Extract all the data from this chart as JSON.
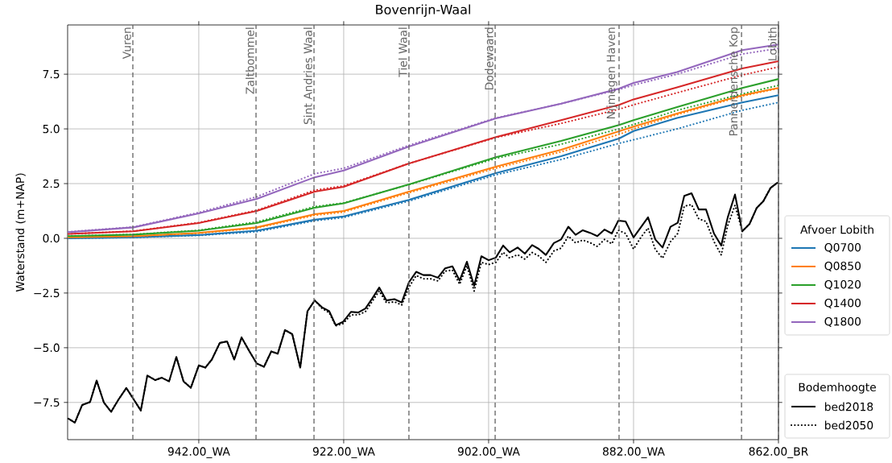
{
  "chart_data": {
    "type": "line",
    "title": "Bovenrijn-Waal",
    "ylabel": "Waterstand (m+NAP)",
    "legend_title": [
      "Afvoer Lobith",
      "Bodemhoogte"
    ],
    "x": [
      960.0,
      951,
      942,
      934,
      926,
      922,
      913,
      901,
      892,
      884,
      882,
      876,
      867,
      862
    ],
    "xlim": [
      960.1,
      862
    ],
    "xticks": [
      {
        "value": 942,
        "label": "942.00_WA"
      },
      {
        "value": 922,
        "label": "922.00_WA"
      },
      {
        "value": 902,
        "label": "902.00_WA"
      },
      {
        "value": 882,
        "label": "882.00_WA"
      },
      {
        "value": 862,
        "label": "862.00_BR"
      }
    ],
    "ylim": [
      -9.2,
      9.75
    ],
    "yticks": [
      {
        "value": -7.5,
        "label": "−7.5"
      },
      {
        "value": -5,
        "label": "−5.0"
      },
      {
        "value": -2.5,
        "label": "−2.5"
      },
      {
        "value": 0,
        "label": "0.0"
      },
      {
        "value": 2.5,
        "label": "2.5"
      },
      {
        "value": 5,
        "label": "5.0"
      },
      {
        "value": 7.5,
        "label": "7.5"
      }
    ],
    "grid": true,
    "legend": "right",
    "ref_lines": [
      {
        "axis": "x",
        "value": 951.1,
        "label": "Vuren",
        "color": "#666666",
        "line_style": "dashed"
      },
      {
        "axis": "x",
        "value": 934.1,
        "label": "Zaltbommel",
        "color": "#666666",
        "line_style": "dashed"
      },
      {
        "axis": "x",
        "value": 926.1,
        "label": "Sint Andries Waal",
        "color": "#666666",
        "line_style": "dashed"
      },
      {
        "axis": "x",
        "value": 913.0,
        "label": "Tiel Waal",
        "color": "#666666",
        "line_style": "dashed"
      },
      {
        "axis": "x",
        "value": 901.1,
        "label": "Dodewaard",
        "color": "#666666",
        "line_style": "dashed"
      },
      {
        "axis": "x",
        "value": 884.0,
        "label": "Nijmegen Haven",
        "color": "#666666",
        "line_style": "dashed"
      },
      {
        "axis": "x",
        "value": 867.1,
        "label": "Pannerdensche Kop",
        "color": "#666666",
        "line_style": "dashed"
      },
      {
        "axis": "x",
        "value": 862.0,
        "label": "Lobith",
        "color": "#666666",
        "line_style": "dashed"
      }
    ],
    "series": [
      {
        "name": "Q0700",
        "color": "#1f77b4",
        "line_style": "solid",
        "values": [
          0.0,
          0.05,
          0.15,
          0.35,
          0.85,
          1.0,
          1.76,
          2.98,
          3.75,
          4.56,
          4.9,
          5.5,
          6.21,
          6.54
        ]
      },
      {
        "color": "#1f77b4",
        "line_style": "dotted",
        "values": [
          0.0,
          0.04,
          0.13,
          0.3,
          0.8,
          0.95,
          1.7,
          2.9,
          3.6,
          4.34,
          4.5,
          5.0,
          5.85,
          6.21
        ]
      },
      {
        "name": "Q0850",
        "color": "#ff7f0e",
        "line_style": "solid",
        "values": [
          0.05,
          0.1,
          0.25,
          0.5,
          1.1,
          1.25,
          2.13,
          3.27,
          4.05,
          4.89,
          5.1,
          5.7,
          6.54,
          6.87
        ]
      },
      {
        "color": "#ff7f0e",
        "line_style": "dotted",
        "values": [
          0.05,
          0.09,
          0.23,
          0.47,
          1.05,
          1.2,
          2.08,
          3.2,
          3.95,
          4.75,
          5.0,
          5.65,
          6.5,
          6.85
        ]
      },
      {
        "name": "Q1020",
        "color": "#2ca02c",
        "line_style": "solid",
        "values": [
          0.1,
          0.17,
          0.35,
          0.7,
          1.4,
          1.6,
          2.46,
          3.71,
          4.45,
          5.18,
          5.4,
          6.0,
          6.87,
          7.28
        ]
      },
      {
        "color": "#2ca02c",
        "line_style": "dotted",
        "values": [
          0.1,
          0.18,
          0.37,
          0.75,
          1.45,
          1.62,
          2.45,
          3.65,
          4.3,
          5.0,
          5.2,
          5.85,
          6.6,
          6.99
        ]
      },
      {
        "name": "Q1400",
        "color": "#d62728",
        "line_style": "solid",
        "values": [
          0.2,
          0.32,
          0.7,
          1.25,
          2.13,
          2.35,
          3.42,
          4.63,
          5.4,
          6.1,
          6.35,
          6.9,
          7.76,
          8.09
        ]
      },
      {
        "color": "#d62728",
        "line_style": "dotted",
        "values": [
          0.2,
          0.33,
          0.72,
          1.28,
          2.2,
          2.4,
          3.42,
          4.6,
          5.25,
          5.9,
          6.1,
          6.65,
          7.46,
          7.83
        ]
      },
      {
        "name": "Q1800",
        "color": "#9467bd",
        "line_style": "solid",
        "values": [
          0.28,
          0.5,
          1.14,
          1.8,
          2.79,
          3.1,
          4.19,
          5.48,
          6.15,
          6.84,
          7.1,
          7.6,
          8.6,
          8.86
        ]
      },
      {
        "color": "#9467bd",
        "line_style": "dotted",
        "values": [
          0.3,
          0.52,
          1.18,
          1.9,
          2.95,
          3.2,
          4.25,
          5.5,
          6.15,
          6.8,
          7.0,
          7.5,
          8.42,
          8.68
        ]
      },
      {
        "name": "bed2018",
        "color": "#000000",
        "line_style": "solid",
        "x": [
          960.0,
          959.1,
          958.1,
          957.0,
          956.1,
          955.1,
          954.1,
          953.1,
          952.0,
          951.0,
          950.0,
          949.1,
          948.0,
          947.1,
          946.1,
          945.1,
          944.1,
          943.1,
          942.0,
          941.1,
          940.2,
          939.1,
          938.1,
          937.1,
          936.1,
          935.0,
          934.0,
          933.0,
          932.0,
          931.1,
          930.1,
          929.1,
          928.0,
          927.0,
          926.0,
          925.0,
          924.0,
          923.1,
          922.1,
          921.0,
          920.0,
          919.0,
          918.0,
          917.1,
          916.1,
          915.0,
          914.0,
          913.0,
          912.0,
          911.0,
          910.0,
          909.0,
          908.0,
          907.0,
          906.0,
          905.0,
          904.0,
          903.0,
          902.0,
          901.0,
          900.0,
          899.1,
          898.0,
          897.0,
          896.0,
          895.1,
          894.1,
          893.0,
          892.0,
          891.0,
          890.0,
          889.0,
          888.0,
          887.0,
          886.0,
          885.0,
          884.1,
          883.1,
          882.0,
          881.0,
          880.0,
          879.0,
          878.0,
          876.9,
          875.9,
          875.0,
          874.0,
          873.0,
          872.0,
          870.9,
          869.9,
          869.0,
          868.0,
          867.0,
          866.0,
          865.0,
          864.1,
          863.1,
          862.1
        ],
        "values": [
          -8.24,
          -8.42,
          -7.62,
          -7.48,
          -6.5,
          -7.5,
          -7.93,
          -7.38,
          -6.84,
          -7.35,
          -7.87,
          -6.27,
          -6.48,
          -6.37,
          -6.54,
          -5.42,
          -6.54,
          -6.83,
          -5.81,
          -5.91,
          -5.54,
          -4.78,
          -4.71,
          -5.54,
          -4.53,
          -5.17,
          -5.72,
          -5.87,
          -5.17,
          -5.27,
          -4.19,
          -4.38,
          -5.91,
          -3.33,
          -2.84,
          -3.15,
          -3.33,
          -3.97,
          -3.82,
          -3.36,
          -3.39,
          -3.21,
          -2.72,
          -2.25,
          -2.84,
          -2.78,
          -2.93,
          -2.01,
          -1.53,
          -1.68,
          -1.68,
          -1.8,
          -1.37,
          -1.28,
          -1.93,
          -1.07,
          -2.17,
          -0.82,
          -1.0,
          -0.88,
          -0.33,
          -0.64,
          -0.42,
          -0.7,
          -0.31,
          -0.48,
          -0.76,
          -0.22,
          -0.05,
          0.53,
          0.16,
          0.37,
          0.25,
          0.1,
          0.4,
          0.22,
          0.81,
          0.77,
          0.04,
          0.5,
          0.96,
          -0.05,
          -0.42,
          0.53,
          0.71,
          1.94,
          2.06,
          1.32,
          1.32,
          0.22,
          -0.33,
          0.96,
          2.0,
          0.32,
          0.65,
          1.39,
          1.69,
          2.3,
          2.55
        ]
      },
      {
        "name": "bed2050",
        "color": "#000000",
        "line_style": "dotted",
        "x": [
          960.0,
          959.1,
          958.1,
          957.0,
          956.1,
          955.1,
          954.1,
          953.1,
          952.0,
          951.0,
          950.0,
          949.1,
          948.0,
          947.1,
          946.1,
          945.1,
          944.1,
          943.1,
          942.0,
          941.1,
          940.2,
          939.1,
          938.1,
          937.1,
          936.1,
          935.0,
          934.0,
          933.0,
          932.0,
          931.1,
          930.1,
          929.1,
          928.0,
          927.0,
          926.0,
          925.0,
          924.0,
          923.1,
          922.1,
          921.0,
          920.0,
          919.0,
          918.0,
          917.1,
          916.1,
          915.0,
          914.0,
          913.0,
          912.0,
          911.0,
          910.0,
          909.0,
          908.0,
          907.0,
          906.0,
          905.0,
          904.0,
          903.0,
          902.0,
          901.0,
          900.0,
          899.1,
          898.0,
          897.0,
          896.0,
          895.1,
          894.1,
          893.0,
          892.0,
          891.0,
          890.0,
          889.0,
          888.0,
          887.0,
          886.0,
          885.0,
          884.1,
          883.1,
          882.0,
          881.0,
          880.0,
          879.0,
          878.0,
          876.9,
          875.9,
          875.0,
          874.0,
          873.0,
          872.0,
          870.9,
          869.9,
          869.0,
          868.0,
          867.0,
          866.0,
          865.0,
          864.1,
          863.1,
          862.1
        ],
        "values": [
          -8.24,
          -8.42,
          -7.62,
          -7.48,
          -6.5,
          -7.5,
          -7.93,
          -7.38,
          -6.84,
          -7.35,
          -7.87,
          -6.27,
          -6.48,
          -6.37,
          -6.54,
          -5.42,
          -6.54,
          -6.83,
          -5.81,
          -5.91,
          -5.54,
          -4.78,
          -4.71,
          -5.54,
          -4.53,
          -5.17,
          -5.72,
          -5.87,
          -5.17,
          -5.27,
          -4.19,
          -4.38,
          -5.91,
          -3.33,
          -2.84,
          -3.2,
          -3.4,
          -4.0,
          -3.9,
          -3.5,
          -3.5,
          -3.35,
          -2.85,
          -2.4,
          -2.95,
          -2.9,
          -3.05,
          -2.23,
          -1.7,
          -1.85,
          -1.85,
          -1.95,
          -1.5,
          -1.45,
          -2.1,
          -1.25,
          -2.41,
          -1.1,
          -1.2,
          -1.1,
          -0.64,
          -0.9,
          -0.75,
          -0.95,
          -0.65,
          -0.8,
          -1.1,
          -0.58,
          -0.45,
          0.1,
          -0.21,
          -0.08,
          -0.2,
          -0.37,
          -0.05,
          -0.25,
          0.37,
          0.22,
          -0.49,
          0.04,
          0.47,
          -0.51,
          -0.91,
          -0.15,
          0.22,
          1.47,
          1.54,
          0.89,
          0.77,
          -0.15,
          -0.76,
          0.59,
          1.51,
          0.32,
          0.65,
          1.39,
          1.69,
          2.3,
          2.55
        ]
      }
    ]
  }
}
